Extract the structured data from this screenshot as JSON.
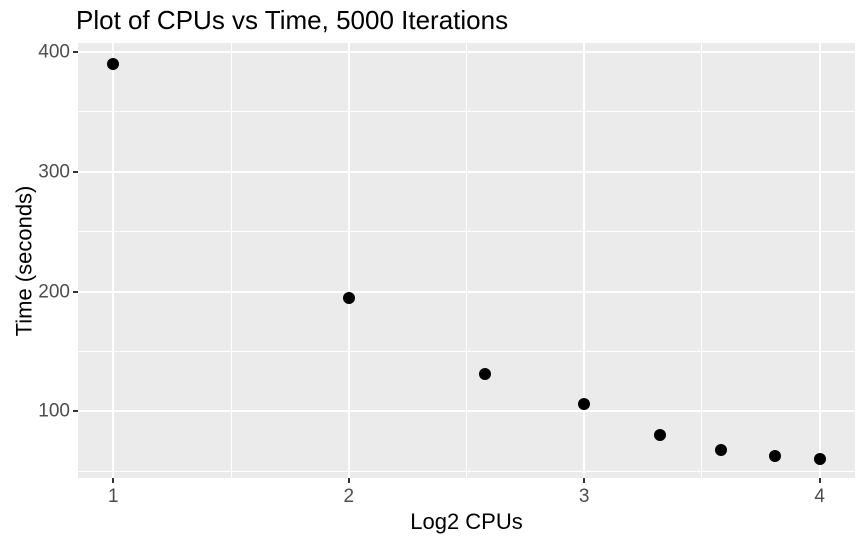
{
  "chart_data": {
    "type": "scatter",
    "title": "Plot of CPUs vs Time, 5000 Iterations",
    "xlabel": "Log2 CPUs",
    "ylabel": "Time (seconds)",
    "x": [
      1,
      2,
      2.58,
      3,
      3.32,
      3.58,
      3.81,
      4
    ],
    "y": [
      390,
      195,
      131,
      106,
      80,
      68,
      63,
      60
    ],
    "xticks": [
      1,
      2,
      3,
      4
    ],
    "yticks": [
      100,
      200,
      300,
      400
    ],
    "xlim": [
      0.85,
      4.15
    ],
    "ylim": [
      44.5,
      407.5
    ],
    "grid": "major-and-minor",
    "legend_position": "none",
    "colors": {
      "point": "#000000",
      "panel_background": "#EBEBEB",
      "gridline": "#FFFFFF",
      "tick_label": "#4D4D4D",
      "tick_mark": "#333333",
      "title_text": "#000000"
    }
  }
}
